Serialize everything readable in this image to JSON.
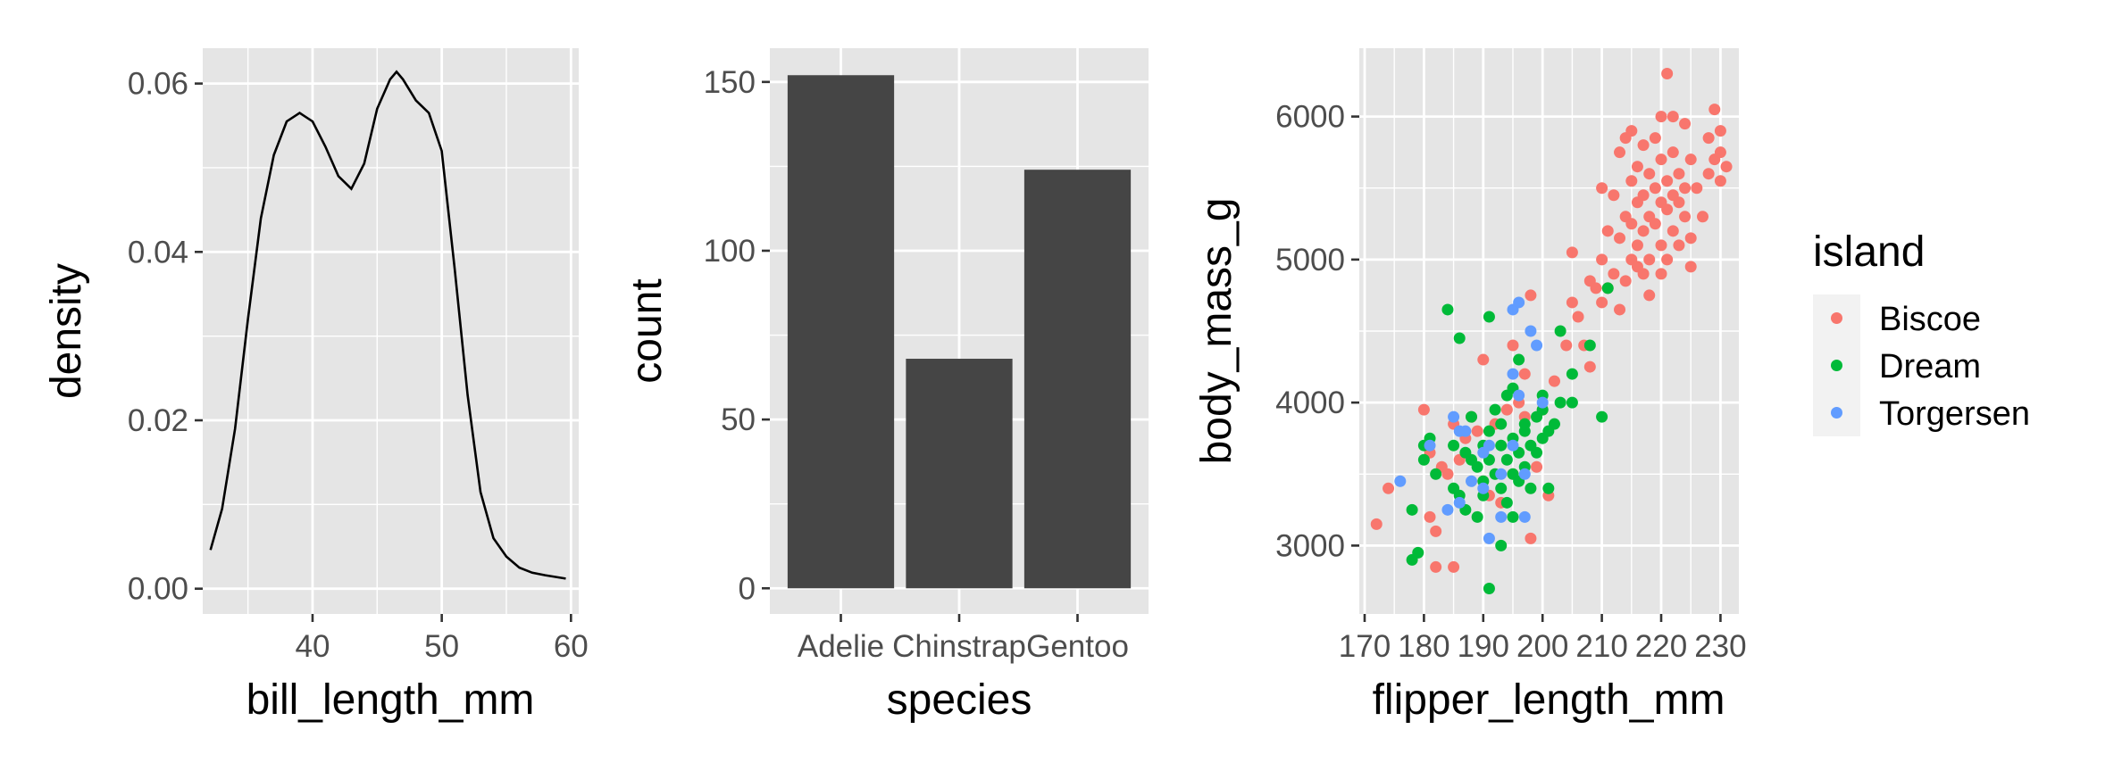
{
  "colors": {
    "panel_bg": "#e5e5e5",
    "grid": "#ffffff",
    "bar": "#454545",
    "line": "#000000",
    "tick_text": "#4d4d4d"
  },
  "chart_data": [
    {
      "type": "line",
      "xlabel": "bill_length_mm",
      "ylabel": "density",
      "xlim": [
        31.5,
        60.6
      ],
      "ylim": [
        -0.003,
        0.0642
      ],
      "x_ticks": [
        40,
        50,
        60
      ],
      "x_tick_labels": [
        "40",
        "50",
        "60"
      ],
      "y_ticks": [
        0,
        0.02,
        0.04,
        0.06
      ],
      "y_tick_labels": [
        "0.00",
        "0.02",
        "0.04",
        "0.06"
      ],
      "grid": true,
      "x": [
        32.1,
        33,
        34,
        35,
        36,
        37,
        38,
        39,
        40,
        41,
        42,
        43,
        44,
        45,
        46,
        46.5,
        47,
        48,
        49,
        50,
        51,
        52,
        53,
        54,
        55,
        56,
        57,
        58,
        59.6
      ],
      "y": [
        0.0046,
        0.0095,
        0.019,
        0.032,
        0.044,
        0.0515,
        0.0555,
        0.0565,
        0.0555,
        0.0525,
        0.049,
        0.0475,
        0.0505,
        0.057,
        0.0605,
        0.0614,
        0.0605,
        0.058,
        0.0565,
        0.052,
        0.038,
        0.023,
        0.0115,
        0.006,
        0.0038,
        0.0025,
        0.0019,
        0.0016,
        0.0012
      ]
    },
    {
      "type": "bar",
      "xlabel": "species",
      "ylabel": "count",
      "categories": [
        "Adelie",
        "Chinstrap",
        "Gentoo"
      ],
      "values": [
        152,
        68,
        124
      ],
      "ylim": [
        -7.6,
        160
      ],
      "y_ticks": [
        0,
        50,
        100,
        150
      ],
      "y_tick_labels": [
        "0",
        "50",
        "100",
        "150"
      ],
      "grid": true
    },
    {
      "type": "scatter",
      "xlabel": "flipper_length_mm",
      "ylabel": "body_mass_g",
      "xlim": [
        169.1,
        233.1
      ],
      "ylim": [
        2522,
        6478
      ],
      "x_ticks": [
        170,
        180,
        190,
        200,
        210,
        220,
        230
      ],
      "x_tick_labels": [
        "170",
        "180",
        "190",
        "200",
        "210",
        "220",
        "230"
      ],
      "y_ticks": [
        3000,
        4000,
        5000,
        6000
      ],
      "y_tick_labels": [
        "3000",
        "4000",
        "5000",
        "6000"
      ],
      "grid": true,
      "legend": {
        "title": "island",
        "position": "right"
      },
      "series": [
        {
          "name": "Biscoe",
          "color": "#f8766d",
          "points": [
            [
              172,
              3150
            ],
            [
              174,
              3400
            ],
            [
              180,
              3950
            ],
            [
              181,
              3650
            ],
            [
              181,
              3200
            ],
            [
              182,
              3100
            ],
            [
              182,
              2850
            ],
            [
              185,
              2850
            ],
            [
              183,
              3550
            ],
            [
              184,
              3500
            ],
            [
              185,
              3850
            ],
            [
              186,
              3600
            ],
            [
              187,
              3750
            ],
            [
              188,
              3900
            ],
            [
              189,
              3800
            ],
            [
              190,
              3450
            ],
            [
              190,
              4300
            ],
            [
              191,
              3350
            ],
            [
              192,
              3850
            ],
            [
              193,
              3300
            ],
            [
              194,
              3950
            ],
            [
              195,
              3500
            ],
            [
              195,
              4400
            ],
            [
              196,
              4000
            ],
            [
              197,
              3900
            ],
            [
              197,
              4200
            ],
            [
              198,
              4750
            ],
            [
              198,
              3050
            ],
            [
              199,
              3550
            ],
            [
              200,
              3950
            ],
            [
              201,
              3350
            ],
            [
              202,
              4150
            ],
            [
              204,
              4400
            ],
            [
              205,
              4700
            ],
            [
              205,
              5050
            ],
            [
              206,
              4600
            ],
            [
              207,
              4400
            ],
            [
              208,
              4250
            ],
            [
              208,
              4850
            ],
            [
              209,
              4800
            ],
            [
              210,
              4700
            ],
            [
              210,
              5000
            ],
            [
              210,
              5500
            ],
            [
              211,
              4800
            ],
            [
              211,
              5200
            ],
            [
              212,
              4900
            ],
            [
              212,
              5450
            ],
            [
              213,
              4650
            ],
            [
              213,
              5150
            ],
            [
              213,
              5750
            ],
            [
              214,
              4850
            ],
            [
              214,
              5300
            ],
            [
              214,
              5850
            ],
            [
              215,
              5000
            ],
            [
              215,
              5250
            ],
            [
              215,
              5550
            ],
            [
              215,
              5900
            ],
            [
              216,
              4950
            ],
            [
              216,
              5100
            ],
            [
              216,
              5400
            ],
            [
              216,
              5650
            ],
            [
              217,
              4900
            ],
            [
              217,
              5200
            ],
            [
              217,
              5450
            ],
            [
              217,
              5800
            ],
            [
              218,
              4750
            ],
            [
              218,
              5000
            ],
            [
              218,
              5300
            ],
            [
              218,
              5600
            ],
            [
              219,
              5250
            ],
            [
              219,
              5500
            ],
            [
              219,
              5850
            ],
            [
              220,
              4900
            ],
            [
              220,
              5100
            ],
            [
              220,
              5400
            ],
            [
              220,
              5700
            ],
            [
              220,
              6000
            ],
            [
              221,
              5000
            ],
            [
              221,
              5350
            ],
            [
              221,
              5550
            ],
            [
              221,
              6300
            ],
            [
              222,
              5200
            ],
            [
              222,
              5450
            ],
            [
              222,
              5750
            ],
            [
              222,
              6000
            ],
            [
              223,
              5100
            ],
            [
              223,
              5400
            ],
            [
              223,
              5600
            ],
            [
              224,
              5300
            ],
            [
              224,
              5500
            ],
            [
              224,
              5950
            ],
            [
              225,
              5150
            ],
            [
              225,
              4950
            ],
            [
              225,
              5700
            ],
            [
              226,
              5500
            ],
            [
              227,
              5300
            ],
            [
              228,
              5600
            ],
            [
              228,
              5850
            ],
            [
              229,
              5700
            ],
            [
              229,
              6050
            ],
            [
              230,
              5550
            ],
            [
              230,
              5750
            ],
            [
              230,
              5900
            ],
            [
              231,
              5650
            ]
          ]
        },
        {
          "name": "Dream",
          "color": "#00ba38",
          "points": [
            [
              178,
              3250
            ],
            [
              178,
              2900
            ],
            [
              179,
              2950
            ],
            [
              180,
              3700
            ],
            [
              180,
              3600
            ],
            [
              181,
              3750
            ],
            [
              182,
              3500
            ],
            [
              184,
              4650
            ],
            [
              185,
              3700
            ],
            [
              185,
              3400
            ],
            [
              186,
              3350
            ],
            [
              186,
              4450
            ],
            [
              187,
              3650
            ],
            [
              187,
              3250
            ],
            [
              188,
              3600
            ],
            [
              188,
              3900
            ],
            [
              189,
              3550
            ],
            [
              189,
              3200
            ],
            [
              190,
              3700
            ],
            [
              190,
              3450
            ],
            [
              190,
              3350
            ],
            [
              191,
              3800
            ],
            [
              191,
              3600
            ],
            [
              191,
              4600
            ],
            [
              192,
              3500
            ],
            [
              192,
              3950
            ],
            [
              193,
              3700
            ],
            [
              193,
              3400
            ],
            [
              193,
              3850
            ],
            [
              194,
              3600
            ],
            [
              194,
              3300
            ],
            [
              194,
              4050
            ],
            [
              195,
              3750
            ],
            [
              195,
              3500
            ],
            [
              195,
              3200
            ],
            [
              195,
              4100
            ],
            [
              196,
              3650
            ],
            [
              196,
              3450
            ],
            [
              196,
              4300
            ],
            [
              197,
              3800
            ],
            [
              197,
              3550
            ],
            [
              197,
              3850
            ],
            [
              198,
              3700
            ],
            [
              198,
              3400
            ],
            [
              199,
              3900
            ],
            [
              199,
              3650
            ],
            [
              200,
              3950
            ],
            [
              200,
              3750
            ],
            [
              200,
              4050
            ],
            [
              201,
              3800
            ],
            [
              201,
              3400
            ],
            [
              202,
              3850
            ],
            [
              203,
              4000
            ],
            [
              203,
              4500
            ],
            [
              205,
              4000
            ],
            [
              205,
              4200
            ],
            [
              208,
              4400
            ],
            [
              210,
              3900
            ],
            [
              211,
              4800
            ],
            [
              191,
              2700
            ],
            [
              193,
              3000
            ]
          ]
        },
        {
          "name": "Torgersen",
          "color": "#619cff",
          "points": [
            [
              176,
              3450
            ],
            [
              181,
              3700
            ],
            [
              184,
              3250
            ],
            [
              185,
              3900
            ],
            [
              186,
              3800
            ],
            [
              186,
              3300
            ],
            [
              187,
              3800
            ],
            [
              188,
              3450
            ],
            [
              190,
              3650
            ],
            [
              190,
              3400
            ],
            [
              191,
              3050
            ],
            [
              191,
              3700
            ],
            [
              193,
              3500
            ],
            [
              193,
              3200
            ],
            [
              195,
              3700
            ],
            [
              195,
              4200
            ],
            [
              195,
              4650
            ],
            [
              196,
              4700
            ],
            [
              196,
              4050
            ],
            [
              197,
              3500
            ],
            [
              197,
              3200
            ],
            [
              198,
              4500
            ],
            [
              199,
              4400
            ],
            [
              200,
              4000
            ]
          ]
        }
      ]
    }
  ]
}
